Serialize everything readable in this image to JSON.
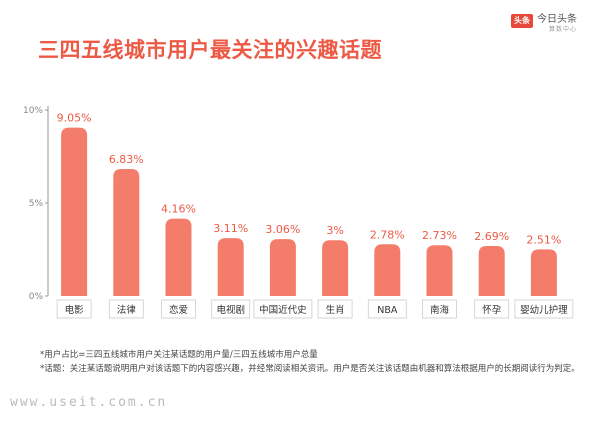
{
  "header": {
    "title": "三四五线城市用户最关注的兴趣话题",
    "logo_badge": "头条",
    "logo_main": "今日头条",
    "logo_sub": "算数中心"
  },
  "colors": {
    "accent": "#ec5a45",
    "bar": "#f47c6a",
    "axis": "#999999"
  },
  "chart_data": {
    "type": "bar",
    "title": "三四五线城市用户最关注的兴趣话题",
    "categories": [
      "电影",
      "法律",
      "恋爱",
      "电视剧",
      "中国近代史",
      "生肖",
      "NBA",
      "南海",
      "怀孕",
      "婴幼儿护理"
    ],
    "values": [
      9.05,
      6.83,
      4.16,
      3.11,
      3.06,
      3,
      2.78,
      2.73,
      2.69,
      2.51
    ],
    "value_labels": [
      "9.05%",
      "6.83%",
      "4.16%",
      "3.11%",
      "3.06%",
      "3%",
      "2.78%",
      "2.73%",
      "2.69%",
      "2.51%"
    ],
    "yticks": [
      0,
      5,
      10
    ],
    "ytick_labels": [
      "0%",
      "5%",
      "10%"
    ],
    "ylim": [
      0,
      10
    ],
    "xlabel": "",
    "ylabel": "",
    "grid": false
  },
  "notes": [
    "*用户占比=三四五线城市用户关注某话题的用户量/三四五线城市用户总量",
    "*话题：关注某话题说明用户对该话题下的内容感兴趣，并经常阅读相关资讯。用户是否关注该话题由机器和算法根据用户的长期阅读行为判定。"
  ],
  "watermark": "www.useit.com.cn"
}
